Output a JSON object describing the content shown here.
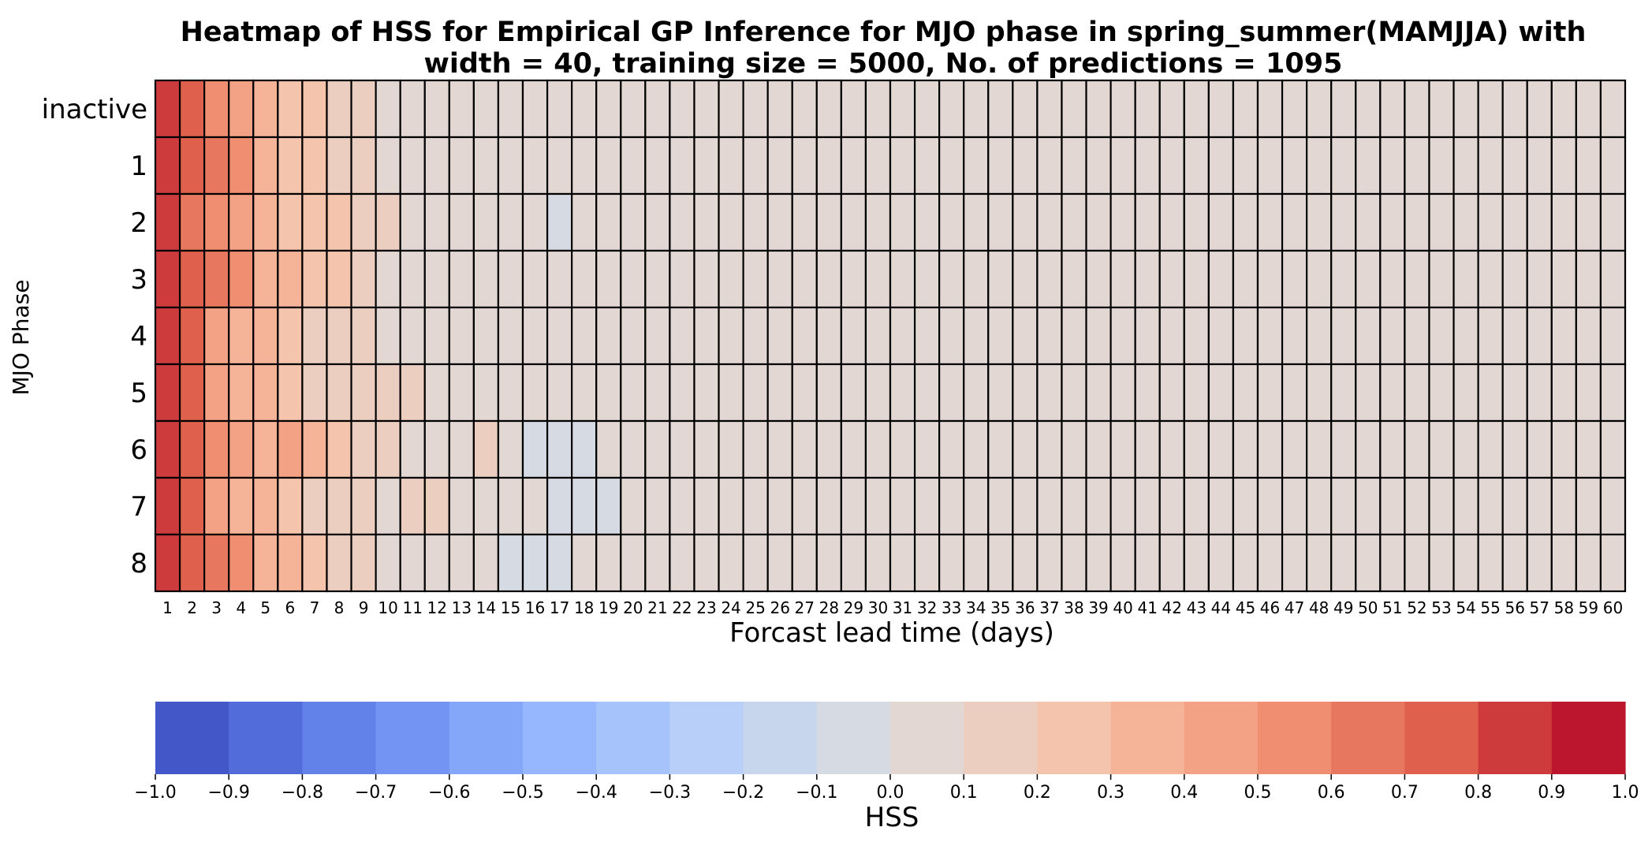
{
  "chart_data": {
    "type": "heatmap",
    "title_line1": "Heatmap of HSS for Empirical GP Inference for MJO phase in spring_summer(MAMJJA) with",
    "title_line2": "width = 40, training size = 5000, No. of predictions = 1095",
    "xlabel": "Forcast lead time (days)",
    "ylabel": "MJO Phase",
    "y_categories": [
      "inactive",
      "1",
      "2",
      "3",
      "4",
      "5",
      "6",
      "7",
      "8"
    ],
    "x_categories": [
      "1",
      "2",
      "3",
      "4",
      "5",
      "6",
      "7",
      "8",
      "9",
      "10",
      "11",
      "12",
      "13",
      "14",
      "15",
      "16",
      "17",
      "18",
      "19",
      "20",
      "21",
      "22",
      "23",
      "24",
      "25",
      "26",
      "27",
      "28",
      "29",
      "30",
      "31",
      "32",
      "33",
      "34",
      "35",
      "36",
      "37",
      "38",
      "39",
      "40",
      "41",
      "42",
      "43",
      "44",
      "45",
      "46",
      "47",
      "48",
      "49",
      "50",
      "51",
      "52",
      "53",
      "54",
      "55",
      "56",
      "57",
      "58",
      "59",
      "60"
    ],
    "values": [
      [
        0.81,
        0.71,
        0.52,
        0.47,
        0.33,
        0.27,
        0.23,
        0.18,
        0.12,
        0.07,
        0.03,
        0.03,
        0.02,
        0.02,
        0.02,
        0.01,
        0.01,
        0.01,
        0.01,
        0.01,
        0.01,
        0.01,
        0.01,
        0.01,
        0.01,
        0.01,
        0.01,
        0.01,
        0.01,
        0.01,
        0.01,
        0.01,
        0.01,
        0.01,
        0.01,
        0.01,
        0.01,
        0.01,
        0.01,
        0.01,
        0.01,
        0.01,
        0.01,
        0.01,
        0.01,
        0.01,
        0.01,
        0.01,
        0.01,
        0.01,
        0.01,
        0.01,
        0.01,
        0.01,
        0.01,
        0.01,
        0.01,
        0.01,
        0.01,
        0.01
      ],
      [
        0.82,
        0.76,
        0.61,
        0.52,
        0.34,
        0.26,
        0.26,
        0.19,
        0.13,
        0.09,
        0.04,
        0.03,
        0.02,
        0.02,
        0.02,
        0.02,
        0.01,
        0.01,
        0.01,
        0.01,
        0.01,
        0.01,
        0.01,
        0.01,
        0.01,
        0.01,
        0.01,
        0.01,
        0.01,
        0.01,
        0.01,
        0.01,
        0.01,
        0.01,
        0.01,
        0.01,
        0.01,
        0.01,
        0.01,
        0.01,
        0.01,
        0.01,
        0.01,
        0.01,
        0.01,
        0.01,
        0.01,
        0.01,
        0.01,
        0.01,
        0.01,
        0.01,
        0.01,
        0.01,
        0.01,
        0.01,
        0.01,
        0.01,
        0.01,
        0.01
      ],
      [
        0.81,
        0.68,
        0.55,
        0.46,
        0.37,
        0.27,
        0.24,
        0.21,
        0.18,
        0.12,
        0.08,
        0.05,
        0.04,
        0.03,
        0.02,
        0.01,
        -0.06,
        0.01,
        0.01,
        0.01,
        0.01,
        0.01,
        0.01,
        0.01,
        0.01,
        0.01,
        0.01,
        0.01,
        0.01,
        0.01,
        0.01,
        0.01,
        0.01,
        0.01,
        0.01,
        0.01,
        0.01,
        0.01,
        0.01,
        0.01,
        0.01,
        0.01,
        0.01,
        0.01,
        0.01,
        0.01,
        0.01,
        0.01,
        0.01,
        0.01,
        0.01,
        0.01,
        0.01,
        0.01,
        0.01,
        0.01,
        0.01,
        0.01,
        0.01,
        0.01
      ],
      [
        0.82,
        0.72,
        0.62,
        0.55,
        0.36,
        0.31,
        0.25,
        0.22,
        0.18,
        0.07,
        0.03,
        0.03,
        0.02,
        0.02,
        0.02,
        0.01,
        0.01,
        0.01,
        0.01,
        0.01,
        0.01,
        0.01,
        0.01,
        0.01,
        0.01,
        0.01,
        0.01,
        0.01,
        0.01,
        0.01,
        0.01,
        0.01,
        0.01,
        0.01,
        0.01,
        0.01,
        0.01,
        0.01,
        0.01,
        0.01,
        0.01,
        0.01,
        0.01,
        0.01,
        0.01,
        0.01,
        0.01,
        0.01,
        0.01,
        0.01,
        0.01,
        0.01,
        0.01,
        0.01,
        0.01,
        0.01,
        0.01,
        0.01,
        0.01,
        0.01
      ],
      [
        0.81,
        0.72,
        0.43,
        0.36,
        0.32,
        0.24,
        0.19,
        0.14,
        0.12,
        0.06,
        0.03,
        0.02,
        0.02,
        0.02,
        0.02,
        0.01,
        0.01,
        0.01,
        0.01,
        0.01,
        0.01,
        0.01,
        0.01,
        0.01,
        0.01,
        0.01,
        0.01,
        0.01,
        0.01,
        0.01,
        0.01,
        0.01,
        0.01,
        0.01,
        0.01,
        0.01,
        0.01,
        0.01,
        0.01,
        0.01,
        0.01,
        0.01,
        0.01,
        0.01,
        0.01,
        0.01,
        0.01,
        0.01,
        0.01,
        0.01,
        0.01,
        0.01,
        0.01,
        0.01,
        0.01,
        0.01,
        0.01,
        0.01,
        0.01,
        0.01
      ],
      [
        0.81,
        0.71,
        0.43,
        0.37,
        0.32,
        0.26,
        0.19,
        0.14,
        0.12,
        0.12,
        0.13,
        0.06,
        0.04,
        0.02,
        0.02,
        0.02,
        0.01,
        0.01,
        0.01,
        0.01,
        0.01,
        0.01,
        0.01,
        0.01,
        0.01,
        0.01,
        0.01,
        0.01,
        0.01,
        0.01,
        0.01,
        0.01,
        0.01,
        0.01,
        0.01,
        0.01,
        0.01,
        0.01,
        0.01,
        0.01,
        0.01,
        0.01,
        0.01,
        0.01,
        0.01,
        0.01,
        0.01,
        0.01,
        0.01,
        0.01,
        0.01,
        0.01,
        0.01,
        0.01,
        0.01,
        0.01,
        0.01,
        0.01,
        0.01,
        0.01
      ],
      [
        0.82,
        0.72,
        0.55,
        0.47,
        0.37,
        0.41,
        0.31,
        0.23,
        0.19,
        0.12,
        0.07,
        0.03,
        0.03,
        0.12,
        0.01,
        -0.02,
        -0.03,
        -0.03,
        0.01,
        0.01,
        0.01,
        0.01,
        0.01,
        0.01,
        0.01,
        0.01,
        0.01,
        0.01,
        0.01,
        0.01,
        0.01,
        0.01,
        0.01,
        0.01,
        0.01,
        0.01,
        0.01,
        0.01,
        0.01,
        0.01,
        0.01,
        0.01,
        0.01,
        0.01,
        0.01,
        0.01,
        0.01,
        0.01,
        0.01,
        0.01,
        0.01,
        0.01,
        0.01,
        0.01,
        0.01,
        0.01,
        0.01,
        0.01,
        0.01,
        0.01
      ],
      [
        0.82,
        0.72,
        0.44,
        0.38,
        0.33,
        0.23,
        0.17,
        0.13,
        0.13,
        0.09,
        0.13,
        0.12,
        0.03,
        0.02,
        0.02,
        0.01,
        -0.03,
        -0.03,
        -0.02,
        0.01,
        0.01,
        0.01,
        0.01,
        0.01,
        0.01,
        0.01,
        0.01,
        0.01,
        0.01,
        0.01,
        0.01,
        0.01,
        0.01,
        0.01,
        0.01,
        0.01,
        0.01,
        0.01,
        0.01,
        0.01,
        0.01,
        0.01,
        0.01,
        0.01,
        0.01,
        0.01,
        0.01,
        0.01,
        0.01,
        0.01,
        0.01,
        0.01,
        0.01,
        0.01,
        0.01,
        0.01,
        0.01,
        0.01,
        0.01,
        0.01
      ],
      [
        0.82,
        0.74,
        0.62,
        0.53,
        0.36,
        0.32,
        0.26,
        0.18,
        0.13,
        0.07,
        0.03,
        0.03,
        0.03,
        0.02,
        -0.03,
        -0.03,
        -0.03,
        0.01,
        0.01,
        0.01,
        0.01,
        0.01,
        0.01,
        0.01,
        0.01,
        0.01,
        0.01,
        0.01,
        0.01,
        0.01,
        0.01,
        0.01,
        0.01,
        0.01,
        0.01,
        0.01,
        0.01,
        0.01,
        0.01,
        0.01,
        0.01,
        0.01,
        0.01,
        0.01,
        0.01,
        0.01,
        0.01,
        0.01,
        0.01,
        0.01,
        0.01,
        0.01,
        0.01,
        0.01,
        0.01,
        0.01,
        0.01,
        0.01,
        0.01,
        0.01
      ]
    ],
    "vmin": -1.0,
    "vmax": 1.0,
    "colormap": "coolwarm",
    "colorbar": {
      "label": "HSS",
      "orientation": "horizontal",
      "placement": "bottom",
      "ticks": [
        "−1.0",
        "−0.9",
        "−0.8",
        "−0.7",
        "−0.6",
        "−0.5",
        "−0.4",
        "−0.3",
        "−0.2",
        "−0.1",
        "0.0",
        "0.1",
        "0.2",
        "0.3",
        "0.4",
        "0.5",
        "0.6",
        "0.7",
        "0.8",
        "0.9",
        "1.0"
      ],
      "bins": 20
    },
    "cell_border_color": "#000000"
  },
  "colors": {
    "coolwarm_stops": [
      "#3b4cc0",
      "#6282ea",
      "#8db0fe",
      "#b8d0f9",
      "#dddcdc",
      "#f5c4ac",
      "#f49a7b",
      "#de604d",
      "#b40426"
    ]
  }
}
